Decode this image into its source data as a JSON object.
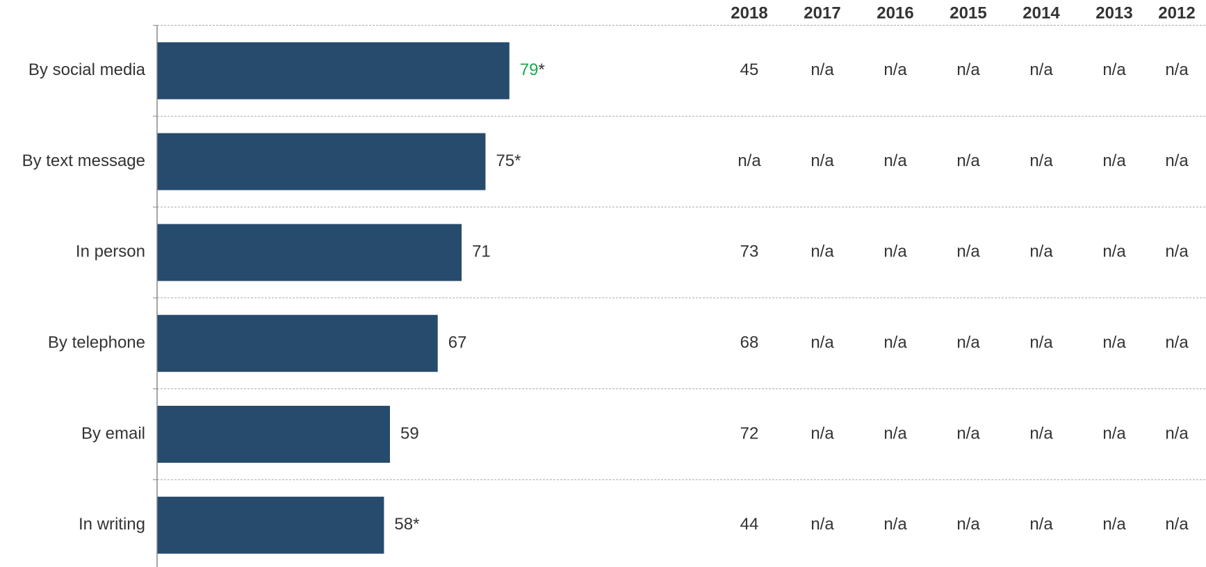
{
  "chart_data": {
    "type": "bar",
    "orientation": "horizontal",
    "categories": [
      "By social media",
      "By text message",
      "In person",
      "By telephone",
      "By email",
      "In writing"
    ],
    "values": [
      79,
      75,
      71,
      67,
      59,
      58
    ],
    "value_labels": [
      "79*",
      "75*",
      "71",
      "67",
      "59",
      "58*"
    ],
    "highlight_index": 0,
    "highlight_color": "#1aa84c",
    "color": "#264b6d",
    "xlim": [
      20,
      100
    ],
    "table": {
      "columns": [
        "2018",
        "2017",
        "2016",
        "2015",
        "2014",
        "2013",
        "2012"
      ],
      "rows": [
        [
          45,
          "n/a",
          "n/a",
          "n/a",
          "n/a",
          "n/a",
          "n/a"
        ],
        [
          "n/a",
          "n/a",
          "n/a",
          "n/a",
          "n/a",
          "n/a",
          "n/a"
        ],
        [
          73,
          "n/a",
          "n/a",
          "n/a",
          "n/a",
          "n/a",
          "n/a"
        ],
        [
          68,
          "n/a",
          "n/a",
          "n/a",
          "n/a",
          "n/a",
          "n/a"
        ],
        [
          72,
          "n/a",
          "n/a",
          "n/a",
          "n/a",
          "n/a",
          "n/a"
        ],
        [
          44,
          "n/a",
          "n/a",
          "n/a",
          "n/a",
          "n/a",
          "n/a"
        ]
      ]
    }
  }
}
